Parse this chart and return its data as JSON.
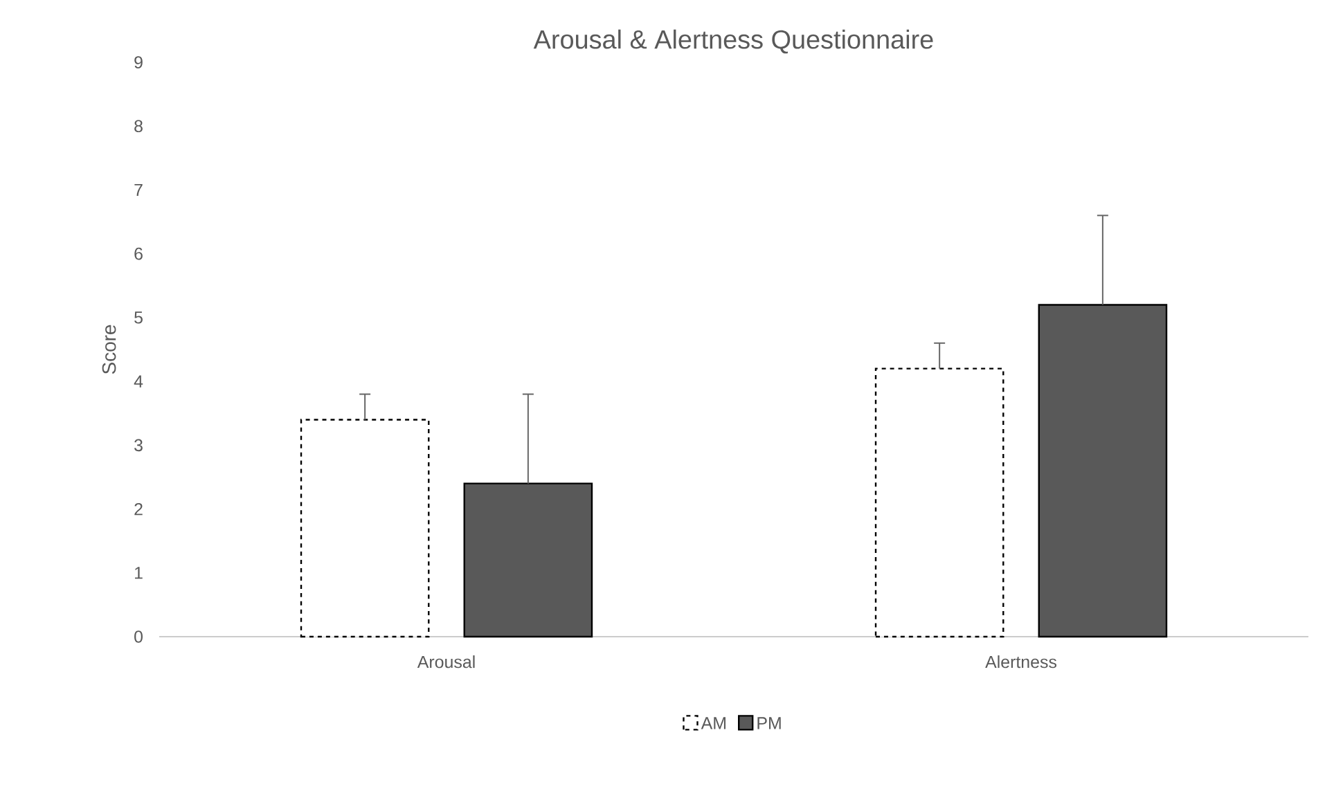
{
  "chart_data": {
    "type": "bar",
    "title": "Arousal & Alertness Questionnaire",
    "ylabel": "Score",
    "categories": [
      "Arousal",
      "Alertness"
    ],
    "series": [
      {
        "name": "AM",
        "color": "#ffffff",
        "line_style": "dashed",
        "values": [
          3.4,
          4.2
        ],
        "errors": [
          [
            3.4,
            3.8
          ],
          [
            4.2,
            4.6
          ]
        ]
      },
      {
        "name": "PM",
        "color": "#595959",
        "line_style": "solid",
        "values": [
          2.4,
          5.2
        ],
        "errors": [
          [
            2.4,
            3.8
          ],
          [
            5.2,
            6.6
          ]
        ]
      }
    ],
    "ylim": [
      0,
      9
    ],
    "yticks": [
      0,
      1,
      2,
      3,
      4,
      5,
      6,
      7,
      8,
      9
    ],
    "grid": false,
    "legend": "bottom"
  }
}
